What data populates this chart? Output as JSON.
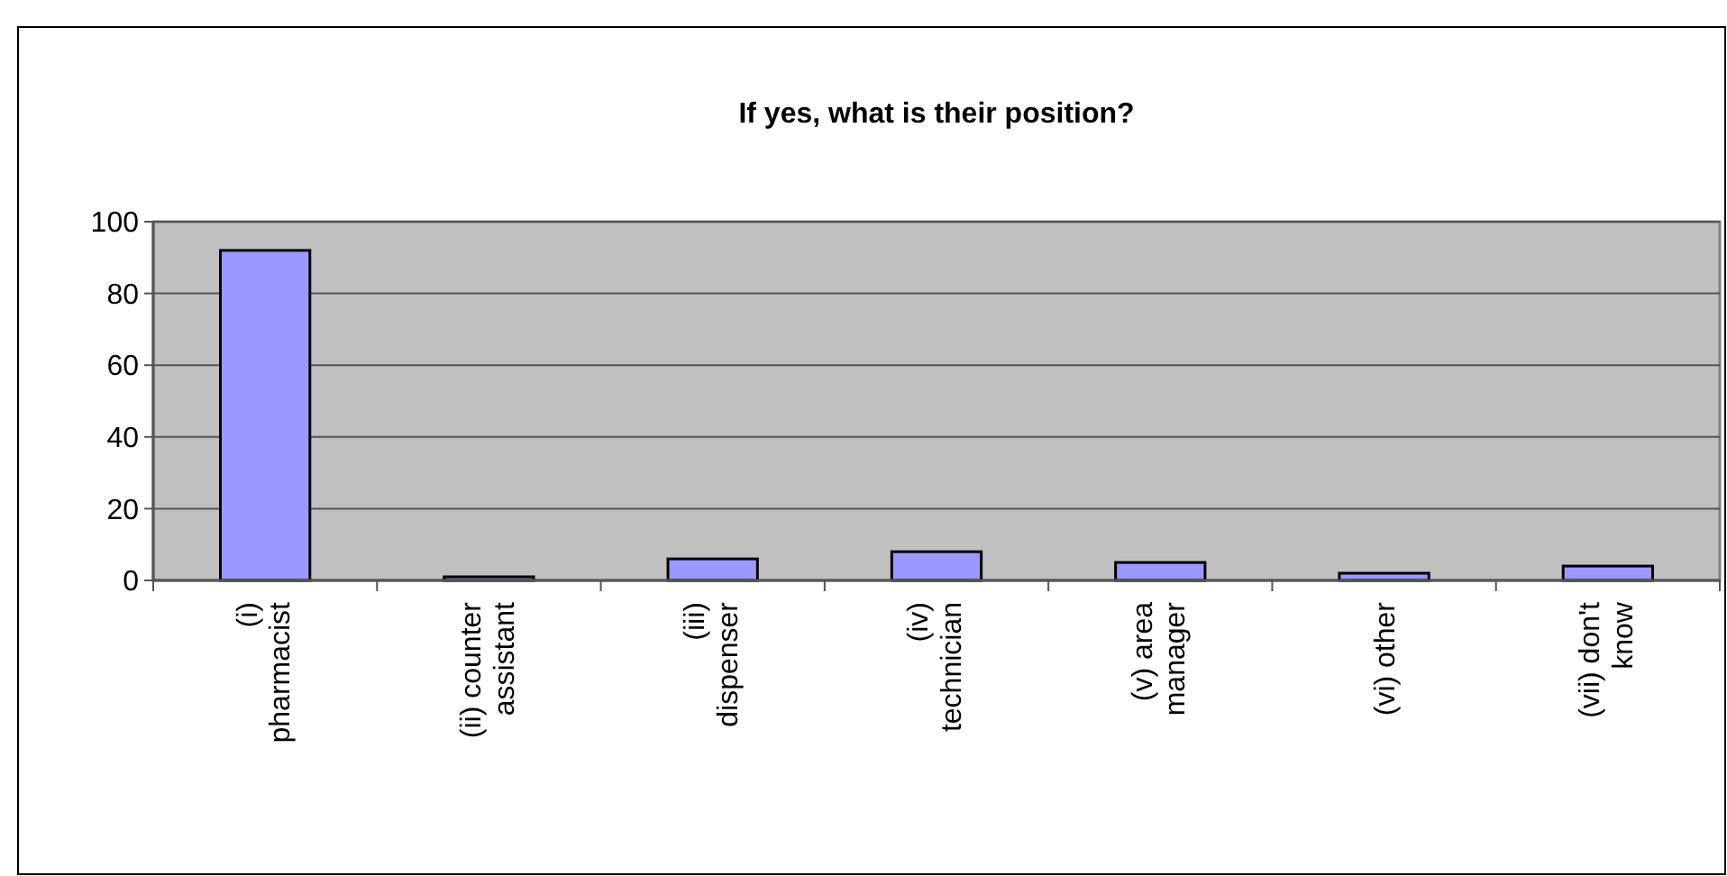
{
  "chart_data": {
    "type": "bar",
    "title": "If yes, what is their position?",
    "categories": [
      "(i) pharmacist",
      "(ii) counter assistant",
      "(iii) dispenser",
      "(iv) technician",
      "(v) area manager",
      "(vi) other",
      "(vii) don't know"
    ],
    "values": [
      92,
      1,
      6,
      8,
      5,
      2,
      4
    ],
    "color": "#9999ff",
    "ylim": [
      0,
      100
    ],
    "yticks": [
      0,
      20,
      40,
      60,
      80,
      100
    ],
    "grid": "y"
  }
}
